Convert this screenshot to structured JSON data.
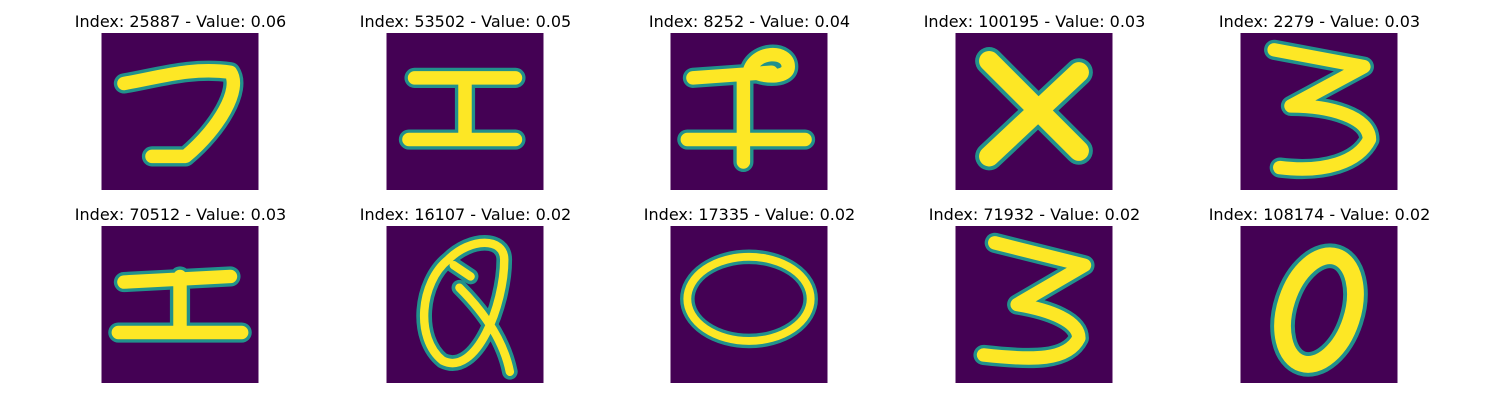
{
  "chart_data": {
    "type": "image_grid",
    "colormap": "viridis",
    "background_color": "#440154",
    "stroke_color": "#fde725",
    "edge_color": "#21918c",
    "axis_visible": false,
    "panels": [
      {
        "title": "Index: 25887 - Value: 0.06",
        "index": 25887,
        "value": 0.06,
        "glyph": "7"
      },
      {
        "title": "Index: 53502 - Value: 0.05",
        "index": 53502,
        "value": 0.05,
        "glyph": "I"
      },
      {
        "title": "Index: 8252 - Value: 0.04",
        "index": 8252,
        "value": 0.04,
        "glyph": "I"
      },
      {
        "title": "Index: 100195 - Value: 0.03",
        "index": 100195,
        "value": 0.03,
        "glyph": "X"
      },
      {
        "title": "Index: 2279 - Value: 0.03",
        "index": 2279,
        "value": 0.03,
        "glyph": "3"
      },
      {
        "title": "Index: 70512 - Value: 0.03",
        "index": 70512,
        "value": 0.03,
        "glyph": "I"
      },
      {
        "title": "Index: 16107 - Value: 0.02",
        "index": 16107,
        "value": 0.02,
        "glyph": "Q"
      },
      {
        "title": "Index: 17335 - Value: 0.02",
        "index": 17335,
        "value": 0.02,
        "glyph": "O"
      },
      {
        "title": "Index: 71932 - Value: 0.02",
        "index": 71932,
        "value": 0.02,
        "glyph": "3"
      },
      {
        "title": "Index: 108174 - Value: 0.02",
        "index": 108174,
        "value": 0.02,
        "glyph": "0"
      }
    ]
  }
}
